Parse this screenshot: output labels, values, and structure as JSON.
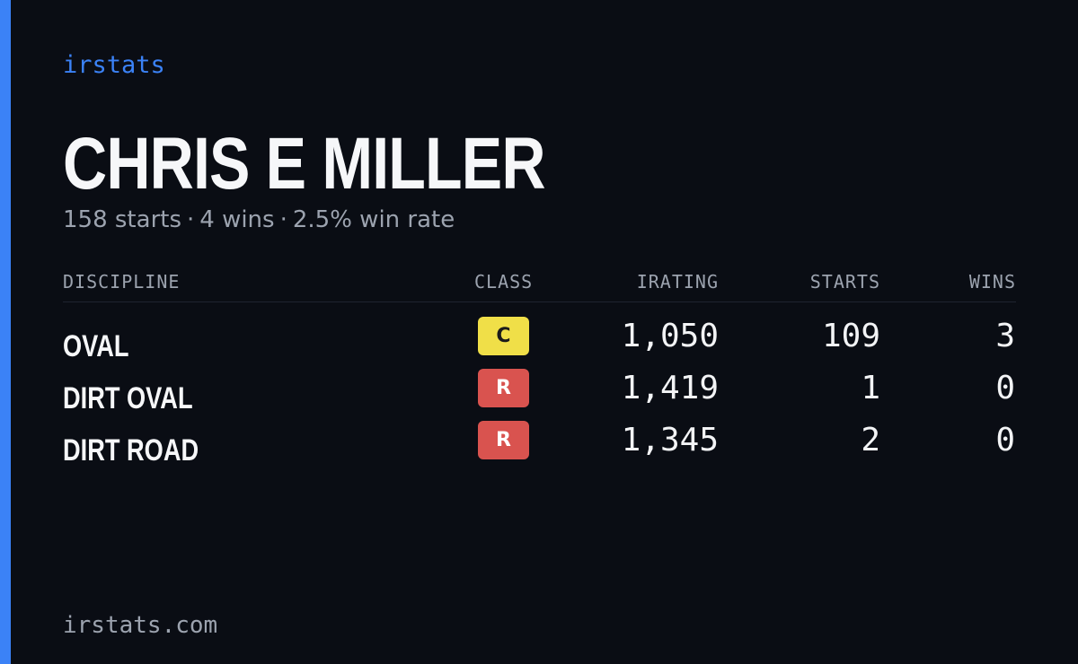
{
  "colors": {
    "accent": "#3b82f6",
    "background": "#0a0d14",
    "muted": "#9ca3af",
    "class_c": "#f0df48",
    "class_r": "#d9534f"
  },
  "brand": "irstats",
  "player": {
    "name": "CHRIS E MILLER",
    "starts": "158 starts",
    "wins": "4 wins",
    "win_rate": "2.5% win rate",
    "separator": "·"
  },
  "table": {
    "headers": {
      "discipline": "DISCIPLINE",
      "class": "CLASS",
      "irating": "IRATING",
      "starts": "STARTS",
      "wins": "WINS"
    },
    "rows": [
      {
        "discipline": "OVAL",
        "class": "C",
        "irating": "1,050",
        "starts": "109",
        "wins": "3"
      },
      {
        "discipline": "DIRT OVAL",
        "class": "R",
        "irating": "1,419",
        "starts": "1",
        "wins": "0"
      },
      {
        "discipline": "DIRT ROAD",
        "class": "R",
        "irating": "1,345",
        "starts": "2",
        "wins": "0"
      }
    ]
  },
  "footer": "irstats.com"
}
